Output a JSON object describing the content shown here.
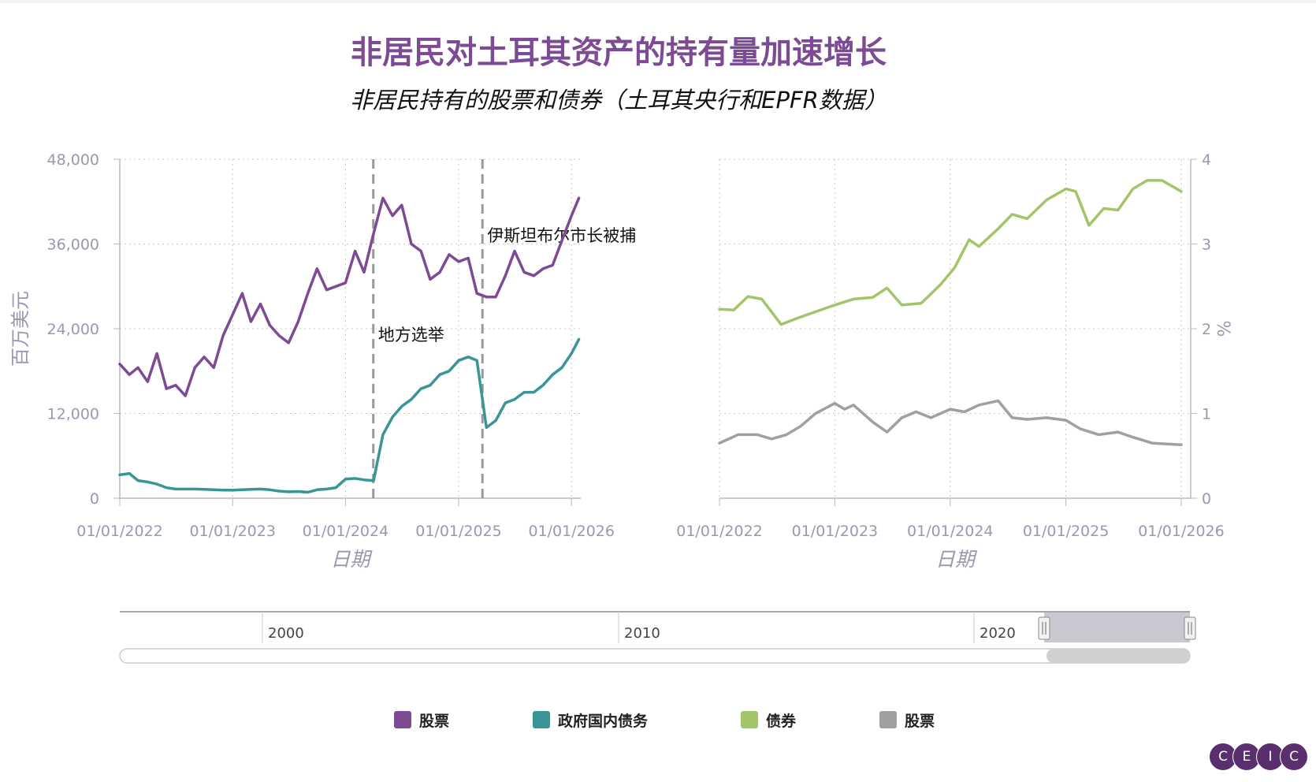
{
  "title": "非居民对土耳其资产的持有量加速增长",
  "subtitle": "非居民持有的股票和债券（土耳其央行和EPFR数据）",
  "navigator": {
    "labels": [
      "2000",
      "2010",
      "2020"
    ]
  },
  "legend": [
    {
      "label": "股票",
      "color": "#7d4b93"
    },
    {
      "label": "政府国内债务",
      "color": "#3a9596"
    },
    {
      "label": "债券",
      "color": "#a3c56a"
    },
    {
      "label": "股票",
      "color": "#a0a0a0"
    }
  ],
  "logo": {
    "letters": [
      "C",
      "E",
      "I",
      "C"
    ]
  },
  "chart_data": [
    {
      "type": "line",
      "xlabel": "日期",
      "ylabel": "百万美元",
      "ylim": [
        0,
        48000
      ],
      "y_ticks": [
        "48,000",
        "36,000",
        "24,000",
        "12,000",
        "0"
      ],
      "x_ticks": [
        "01/01/2022",
        "01/01/2023",
        "01/01/2024",
        "01/01/2025",
        "01/01/2026"
      ],
      "x_tick_dates": [
        "2022-01-01",
        "2023-01-01",
        "2024-01-01",
        "2025-01-01",
        "2026-01-01"
      ],
      "xlim": [
        "2022-01-01",
        "2026-01-31"
      ],
      "grid": true,
      "series": [
        {
          "name": "股票",
          "color": "#7d4b93",
          "points": [
            [
              "2022-01-01",
              19000
            ],
            [
              "2022-02-01",
              17500
            ],
            [
              "2022-03-01",
              18500
            ],
            [
              "2022-04-01",
              16500
            ],
            [
              "2022-05-01",
              20500
            ],
            [
              "2022-06-01",
              15500
            ],
            [
              "2022-07-01",
              16000
            ],
            [
              "2022-08-01",
              14500
            ],
            [
              "2022-09-01",
              18500
            ],
            [
              "2022-10-01",
              20000
            ],
            [
              "2022-11-01",
              18500
            ],
            [
              "2022-12-01",
              23000
            ],
            [
              "2023-01-01",
              26000
            ],
            [
              "2023-02-01",
              29000
            ],
            [
              "2023-03-01",
              25000
            ],
            [
              "2023-04-01",
              27500
            ],
            [
              "2023-05-01",
              24500
            ],
            [
              "2023-06-01",
              23000
            ],
            [
              "2023-07-01",
              22000
            ],
            [
              "2023-08-01",
              25000
            ],
            [
              "2023-09-01",
              29000
            ],
            [
              "2023-10-01",
              32500
            ],
            [
              "2023-11-01",
              29500
            ],
            [
              "2023-12-01",
              30000
            ],
            [
              "2024-01-01",
              30500
            ],
            [
              "2024-02-01",
              35000
            ],
            [
              "2024-03-01",
              32000
            ],
            [
              "2024-04-01",
              37500
            ],
            [
              "2024-05-01",
              42500
            ],
            [
              "2024-06-01",
              40000
            ],
            [
              "2024-07-01",
              41500
            ],
            [
              "2024-08-01",
              36000
            ],
            [
              "2024-09-01",
              35000
            ],
            [
              "2024-10-01",
              31000
            ],
            [
              "2024-11-01",
              32000
            ],
            [
              "2024-12-01",
              34500
            ],
            [
              "2025-01-01",
              33500
            ],
            [
              "2025-02-01",
              34000
            ],
            [
              "2025-03-01",
              29000
            ],
            [
              "2025-04-01",
              28500
            ],
            [
              "2025-05-01",
              28500
            ],
            [
              "2025-06-01",
              31500
            ],
            [
              "2025-07-01",
              35000
            ],
            [
              "2025-08-01",
              32000
            ],
            [
              "2025-09-01",
              31500
            ],
            [
              "2025-10-01",
              32500
            ],
            [
              "2025-11-01",
              33000
            ],
            [
              "2025-12-01",
              36500
            ],
            [
              "2026-01-01",
              40000
            ],
            [
              "2026-01-25",
              42500
            ]
          ]
        },
        {
          "name": "政府国内债务",
          "color": "#3a9596",
          "points": [
            [
              "2022-01-01",
              3300
            ],
            [
              "2022-02-01",
              3500
            ],
            [
              "2022-03-01",
              2500
            ],
            [
              "2022-04-01",
              2300
            ],
            [
              "2022-05-01",
              2000
            ],
            [
              "2022-06-01",
              1500
            ],
            [
              "2022-07-01",
              1300
            ],
            [
              "2022-08-01",
              1300
            ],
            [
              "2022-09-01",
              1300
            ],
            [
              "2022-10-01",
              1250
            ],
            [
              "2022-11-01",
              1200
            ],
            [
              "2022-12-01",
              1150
            ],
            [
              "2023-01-01",
              1150
            ],
            [
              "2023-02-01",
              1200
            ],
            [
              "2023-03-01",
              1250
            ],
            [
              "2023-04-01",
              1300
            ],
            [
              "2023-05-01",
              1200
            ],
            [
              "2023-06-01",
              1000
            ],
            [
              "2023-07-01",
              900
            ],
            [
              "2023-08-01",
              950
            ],
            [
              "2023-09-01",
              850
            ],
            [
              "2023-10-01",
              1200
            ],
            [
              "2023-11-01",
              1300
            ],
            [
              "2023-12-01",
              1500
            ],
            [
              "2024-01-01",
              2700
            ],
            [
              "2024-02-01",
              2800
            ],
            [
              "2024-03-01",
              2600
            ],
            [
              "2024-04-01",
              2500
            ],
            [
              "2024-05-01",
              9000
            ],
            [
              "2024-06-01",
              11500
            ],
            [
              "2024-07-01",
              13000
            ],
            [
              "2024-08-01",
              14000
            ],
            [
              "2024-09-01",
              15500
            ],
            [
              "2024-10-01",
              16000
            ],
            [
              "2024-11-01",
              17500
            ],
            [
              "2024-12-01",
              18000
            ],
            [
              "2025-01-01",
              19500
            ],
            [
              "2025-02-01",
              20000
            ],
            [
              "2025-03-01",
              19500
            ],
            [
              "2025-04-01",
              10000
            ],
            [
              "2025-05-01",
              11000
            ],
            [
              "2025-06-01",
              13500
            ],
            [
              "2025-07-01",
              14000
            ],
            [
              "2025-08-01",
              15000
            ],
            [
              "2025-09-01",
              15000
            ],
            [
              "2025-10-01",
              16000
            ],
            [
              "2025-11-01",
              17500
            ],
            [
              "2025-12-01",
              18500
            ],
            [
              "2026-01-01",
              20500
            ],
            [
              "2026-01-25",
              22500
            ]
          ]
        }
      ],
      "annotations": [
        {
          "label": "地方选举",
          "date": "2024-03-31"
        },
        {
          "label": "伊斯坦布尔市长被捕",
          "date": "2025-03-19"
        }
      ]
    },
    {
      "type": "line",
      "xlabel": "日期",
      "ylabel": "%",
      "ylim": [
        0,
        4
      ],
      "y_ticks": [
        "4",
        "3",
        "2",
        "1",
        "0"
      ],
      "x_ticks": [
        "01/01/2022",
        "01/01/2023",
        "01/01/2024",
        "01/01/2025",
        "01/01/2026"
      ],
      "x_tick_dates": [
        "2022-01-01",
        "2023-01-01",
        "2024-01-01",
        "2025-01-01",
        "2026-01-01"
      ],
      "xlim": [
        "2022-01-01",
        "2026-01-31"
      ],
      "grid": true,
      "series": [
        {
          "name": "债券",
          "color": "#a3c56a",
          "points": [
            [
              "2022-01-01",
              2.23
            ],
            [
              "2022-02-15",
              2.22
            ],
            [
              "2022-04-01",
              2.38
            ],
            [
              "2022-05-15",
              2.35
            ],
            [
              "2022-07-15",
              2.05
            ],
            [
              "2022-09-01",
              2.12
            ],
            [
              "2022-11-01",
              2.2
            ],
            [
              "2023-01-01",
              2.28
            ],
            [
              "2023-03-01",
              2.35
            ],
            [
              "2023-05-01",
              2.37
            ],
            [
              "2023-06-15",
              2.48
            ],
            [
              "2023-08-01",
              2.28
            ],
            [
              "2023-10-01",
              2.3
            ],
            [
              "2023-12-01",
              2.52
            ],
            [
              "2024-01-15",
              2.72
            ],
            [
              "2024-03-01",
              3.05
            ],
            [
              "2024-04-01",
              2.97
            ],
            [
              "2024-06-01",
              3.18
            ],
            [
              "2024-07-15",
              3.35
            ],
            [
              "2024-09-01",
              3.3
            ],
            [
              "2024-11-01",
              3.52
            ],
            [
              "2025-01-01",
              3.65
            ],
            [
              "2025-02-01",
              3.62
            ],
            [
              "2025-03-15",
              3.22
            ],
            [
              "2025-05-01",
              3.42
            ],
            [
              "2025-06-15",
              3.4
            ],
            [
              "2025-08-01",
              3.65
            ],
            [
              "2025-09-15",
              3.75
            ],
            [
              "2025-11-01",
              3.75
            ],
            [
              "2026-01-01",
              3.62
            ]
          ]
        },
        {
          "name": "股票",
          "color": "#a0a0a0",
          "points": [
            [
              "2022-01-01",
              0.65
            ],
            [
              "2022-03-01",
              0.75
            ],
            [
              "2022-05-01",
              0.75
            ],
            [
              "2022-06-15",
              0.7
            ],
            [
              "2022-08-01",
              0.75
            ],
            [
              "2022-09-15",
              0.85
            ],
            [
              "2022-11-01",
              1.0
            ],
            [
              "2023-01-01",
              1.12
            ],
            [
              "2023-02-01",
              1.05
            ],
            [
              "2023-03-01",
              1.1
            ],
            [
              "2023-05-01",
              0.9
            ],
            [
              "2023-06-15",
              0.78
            ],
            [
              "2023-08-01",
              0.95
            ],
            [
              "2023-09-15",
              1.02
            ],
            [
              "2023-11-01",
              0.95
            ],
            [
              "2024-01-01",
              1.05
            ],
            [
              "2024-02-15",
              1.02
            ],
            [
              "2024-04-01",
              1.1
            ],
            [
              "2024-06-01",
              1.15
            ],
            [
              "2024-07-15",
              0.95
            ],
            [
              "2024-09-01",
              0.93
            ],
            [
              "2024-11-01",
              0.95
            ],
            [
              "2025-01-01",
              0.92
            ],
            [
              "2025-02-15",
              0.82
            ],
            [
              "2025-04-15",
              0.75
            ],
            [
              "2025-06-15",
              0.78
            ],
            [
              "2025-08-01",
              0.72
            ],
            [
              "2025-10-01",
              0.65
            ],
            [
              "2026-01-01",
              0.63
            ]
          ]
        }
      ]
    }
  ]
}
